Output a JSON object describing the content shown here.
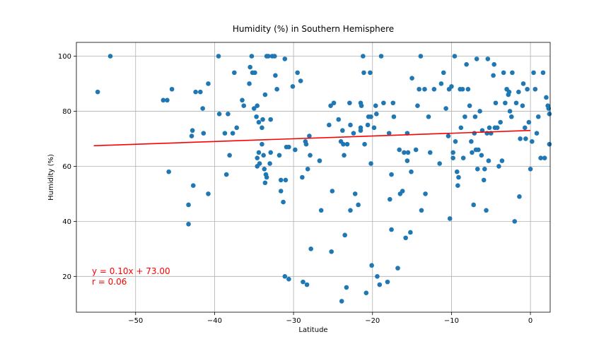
{
  "chart_data": {
    "type": "scatter",
    "title": "Humidity (%) in Southern Hemisphere",
    "xlabel": "Latitude",
    "ylabel": "Humidity (%)",
    "xlim": [
      -57.5,
      2.5
    ],
    "ylim": [
      7,
      105
    ],
    "xticks": [
      -50,
      -40,
      -30,
      -20,
      -10,
      0
    ],
    "yticks": [
      20,
      40,
      60,
      80,
      100
    ],
    "grid": true,
    "point_color": "#1f77b4",
    "line_color": "#ff0000",
    "annotation": {
      "equation": "y = 0.10x + 73.00",
      "r": "r = 0.06"
    },
    "regression": {
      "slope": 0.1,
      "intercept": 73.0,
      "x_range": [
        -55.3,
        0
      ]
    },
    "points": [
      [
        -54.8,
        87
      ],
      [
        -53.2,
        100
      ],
      [
        -46.5,
        84
      ],
      [
        -46.0,
        84
      ],
      [
        -45.8,
        58
      ],
      [
        -45.4,
        88
      ],
      [
        -43.3,
        46
      ],
      [
        -43.3,
        39
      ],
      [
        -42.9,
        71
      ],
      [
        -42.8,
        73
      ],
      [
        -42.7,
        53
      ],
      [
        -42.4,
        87
      ],
      [
        -41.8,
        87
      ],
      [
        -41.5,
        81
      ],
      [
        -41.4,
        72
      ],
      [
        -40.8,
        90
      ],
      [
        -40.8,
        50
      ],
      [
        -39.5,
        100
      ],
      [
        -39.4,
        79
      ],
      [
        -38.7,
        72
      ],
      [
        -38.5,
        57
      ],
      [
        -38.3,
        79
      ],
      [
        -38.1,
        64
      ],
      [
        -37.7,
        72
      ],
      [
        -37.5,
        94
      ],
      [
        -37.2,
        74
      ],
      [
        -36.5,
        84
      ],
      [
        -36.3,
        82
      ],
      [
        -35.6,
        90
      ],
      [
        -35.5,
        96
      ],
      [
        -35.3,
        100
      ],
      [
        -35.2,
        94
      ],
      [
        -35.0,
        81
      ],
      [
        -34.9,
        94
      ],
      [
        -34.7,
        78
      ],
      [
        -34.6,
        82
      ],
      [
        -34.6,
        60
      ],
      [
        -34.6,
        63
      ],
      [
        -34.4,
        76
      ],
      [
        -34.4,
        65
      ],
      [
        -34.3,
        61
      ],
      [
        -34.0,
        68
      ],
      [
        -34.0,
        74
      ],
      [
        -33.9,
        77
      ],
      [
        -33.8,
        64
      ],
      [
        -33.7,
        59
      ],
      [
        -33.6,
        86
      ],
      [
        -33.6,
        54
      ],
      [
        -33.5,
        57
      ],
      [
        -33.4,
        56
      ],
      [
        -33.4,
        100
      ],
      [
        -33.2,
        100
      ],
      [
        -33.0,
        61
      ],
      [
        -32.9,
        77
      ],
      [
        -32.9,
        65
      ],
      [
        -32.7,
        100
      ],
      [
        -32.4,
        100
      ],
      [
        -32.3,
        93
      ],
      [
        -32.1,
        88
      ],
      [
        -31.8,
        64
      ],
      [
        -31.6,
        51
      ],
      [
        -31.6,
        55
      ],
      [
        -31.3,
        47
      ],
      [
        -31.1,
        99
      ],
      [
        -31.1,
        20
      ],
      [
        -31.0,
        55
      ],
      [
        -30.9,
        67
      ],
      [
        -30.6,
        19
      ],
      [
        -30.6,
        67
      ],
      [
        -30.1,
        89
      ],
      [
        -29.8,
        66
      ],
      [
        -29.5,
        94
      ],
      [
        -29.1,
        91
      ],
      [
        -28.9,
        56
      ],
      [
        -28.8,
        18
      ],
      [
        -28.5,
        69
      ],
      [
        -28.4,
        68
      ],
      [
        -28.3,
        17
      ],
      [
        -28.2,
        59
      ],
      [
        -28.0,
        71
      ],
      [
        -27.9,
        64
      ],
      [
        -27.8,
        30
      ],
      [
        -26.7,
        62
      ],
      [
        -26.5,
        44
      ],
      [
        -25.5,
        75
      ],
      [
        -25.3,
        82
      ],
      [
        -25.2,
        29
      ],
      [
        -25.1,
        51
      ],
      [
        -24.9,
        83
      ],
      [
        -24.3,
        77
      ],
      [
        -24.0,
        69
      ],
      [
        -23.9,
        11
      ],
      [
        -23.8,
        73
      ],
      [
        -23.7,
        68
      ],
      [
        -23.6,
        64
      ],
      [
        -23.5,
        35
      ],
      [
        -23.3,
        16
      ],
      [
        -23.2,
        68
      ],
      [
        -22.9,
        83
      ],
      [
        -22.8,
        75
      ],
      [
        -22.8,
        44
      ],
      [
        -22.4,
        72
      ],
      [
        -22.2,
        50
      ],
      [
        -21.8,
        46
      ],
      [
        -21.5,
        83
      ],
      [
        -21.5,
        74
      ],
      [
        -21.5,
        73
      ],
      [
        -21.4,
        82
      ],
      [
        -21.2,
        100
      ],
      [
        -21.1,
        94
      ],
      [
        -21.0,
        68
      ],
      [
        -20.8,
        14
      ],
      [
        -20.6,
        75
      ],
      [
        -20.5,
        78
      ],
      [
        -20.3,
        94
      ],
      [
        -20.2,
        78
      ],
      [
        -20.2,
        61
      ],
      [
        -20.1,
        24
      ],
      [
        -19.8,
        74
      ],
      [
        -19.6,
        82
      ],
      [
        -19.5,
        79
      ],
      [
        -19.4,
        20
      ],
      [
        -19.1,
        17
      ],
      [
        -18.9,
        100
      ],
      [
        -18.6,
        83
      ],
      [
        -18.1,
        18
      ],
      [
        -17.9,
        72
      ],
      [
        -17.8,
        48
      ],
      [
        -17.6,
        57
      ],
      [
        -17.6,
        37
      ],
      [
        -17.4,
        83
      ],
      [
        -17.3,
        78
      ],
      [
        -16.8,
        23
      ],
      [
        -16.6,
        66
      ],
      [
        -16.5,
        50
      ],
      [
        -16.2,
        51
      ],
      [
        -16.0,
        65
      ],
      [
        -15.8,
        34
      ],
      [
        -15.6,
        62
      ],
      [
        -15.6,
        72
      ],
      [
        -15.5,
        65
      ],
      [
        -15.2,
        36
      ],
      [
        -15.1,
        58
      ],
      [
        -15.0,
        92
      ],
      [
        -14.5,
        66
      ],
      [
        -14.3,
        82
      ],
      [
        -14.1,
        88
      ],
      [
        -13.9,
        100
      ],
      [
        -13.8,
        44
      ],
      [
        -13.4,
        88
      ],
      [
        -13.3,
        50
      ],
      [
        -12.9,
        78
      ],
      [
        -12.7,
        65
      ],
      [
        -12.2,
        88
      ],
      [
        -11.5,
        61
      ],
      [
        -11.3,
        90
      ],
      [
        -11.0,
        94
      ],
      [
        -10.7,
        81
      ],
      [
        -10.4,
        71
      ],
      [
        -10.3,
        88
      ],
      [
        -10.2,
        41
      ],
      [
        -10.0,
        89
      ],
      [
        -9.8,
        65
      ],
      [
        -9.8,
        63
      ],
      [
        -9.6,
        100
      ],
      [
        -9.5,
        69
      ],
      [
        -9.3,
        58
      ],
      [
        -9.2,
        53
      ],
      [
        -9.1,
        56
      ],
      [
        -8.9,
        88
      ],
      [
        -8.8,
        74
      ],
      [
        -8.6,
        88
      ],
      [
        -8.5,
        63
      ],
      [
        -8.3,
        78
      ],
      [
        -8.1,
        97
      ],
      [
        -7.9,
        88
      ],
      [
        -7.7,
        82
      ],
      [
        -7.5,
        69
      ],
      [
        -7.4,
        65
      ],
      [
        -7.2,
        46
      ],
      [
        -7.1,
        72
      ],
      [
        -7.0,
        78
      ],
      [
        -6.9,
        66
      ],
      [
        -6.8,
        99
      ],
      [
        -6.7,
        59
      ],
      [
        -6.6,
        66
      ],
      [
        -6.4,
        80
      ],
      [
        -6.2,
        64
      ],
      [
        -6.1,
        73
      ],
      [
        -5.9,
        55
      ],
      [
        -5.8,
        59
      ],
      [
        -5.6,
        44
      ],
      [
        -5.5,
        72
      ],
      [
        -5.4,
        99
      ],
      [
        -5.3,
        62
      ],
      [
        -5.2,
        74
      ],
      [
        -5.0,
        72
      ],
      [
        -4.7,
        93
      ],
      [
        -4.6,
        97
      ],
      [
        -4.5,
        74
      ],
      [
        -4.4,
        83
      ],
      [
        -4.2,
        74
      ],
      [
        -4.0,
        60
      ],
      [
        -3.8,
        76
      ],
      [
        -3.6,
        62
      ],
      [
        -3.4,
        94
      ],
      [
        -3.2,
        83
      ],
      [
        -3.0,
        88
      ],
      [
        -2.8,
        86
      ],
      [
        -2.7,
        87
      ],
      [
        -2.6,
        80
      ],
      [
        -2.4,
        78
      ],
      [
        -2.3,
        94
      ],
      [
        -2.0,
        40
      ],
      [
        -1.8,
        83
      ],
      [
        -1.5,
        87
      ],
      [
        -1.4,
        49
      ],
      [
        -1.3,
        70
      ],
      [
        -1.0,
        82
      ],
      [
        -0.9,
        90
      ],
      [
        -0.7,
        74
      ],
      [
        -0.6,
        70
      ],
      [
        -0.4,
        88
      ],
      [
        -0.2,
        76
      ],
      [
        0.0,
        59
      ],
      [
        0.2,
        69
      ],
      [
        0.4,
        94
      ],
      [
        0.6,
        88
      ],
      [
        0.8,
        72
      ],
      [
        1.0,
        78
      ],
      [
        1.3,
        63
      ],
      [
        1.6,
        94
      ],
      [
        1.8,
        63
      ],
      [
        2.0,
        85
      ],
      [
        2.2,
        82
      ],
      [
        2.3,
        81
      ],
      [
        2.4,
        79
      ],
      [
        2.4,
        68
      ]
    ]
  }
}
